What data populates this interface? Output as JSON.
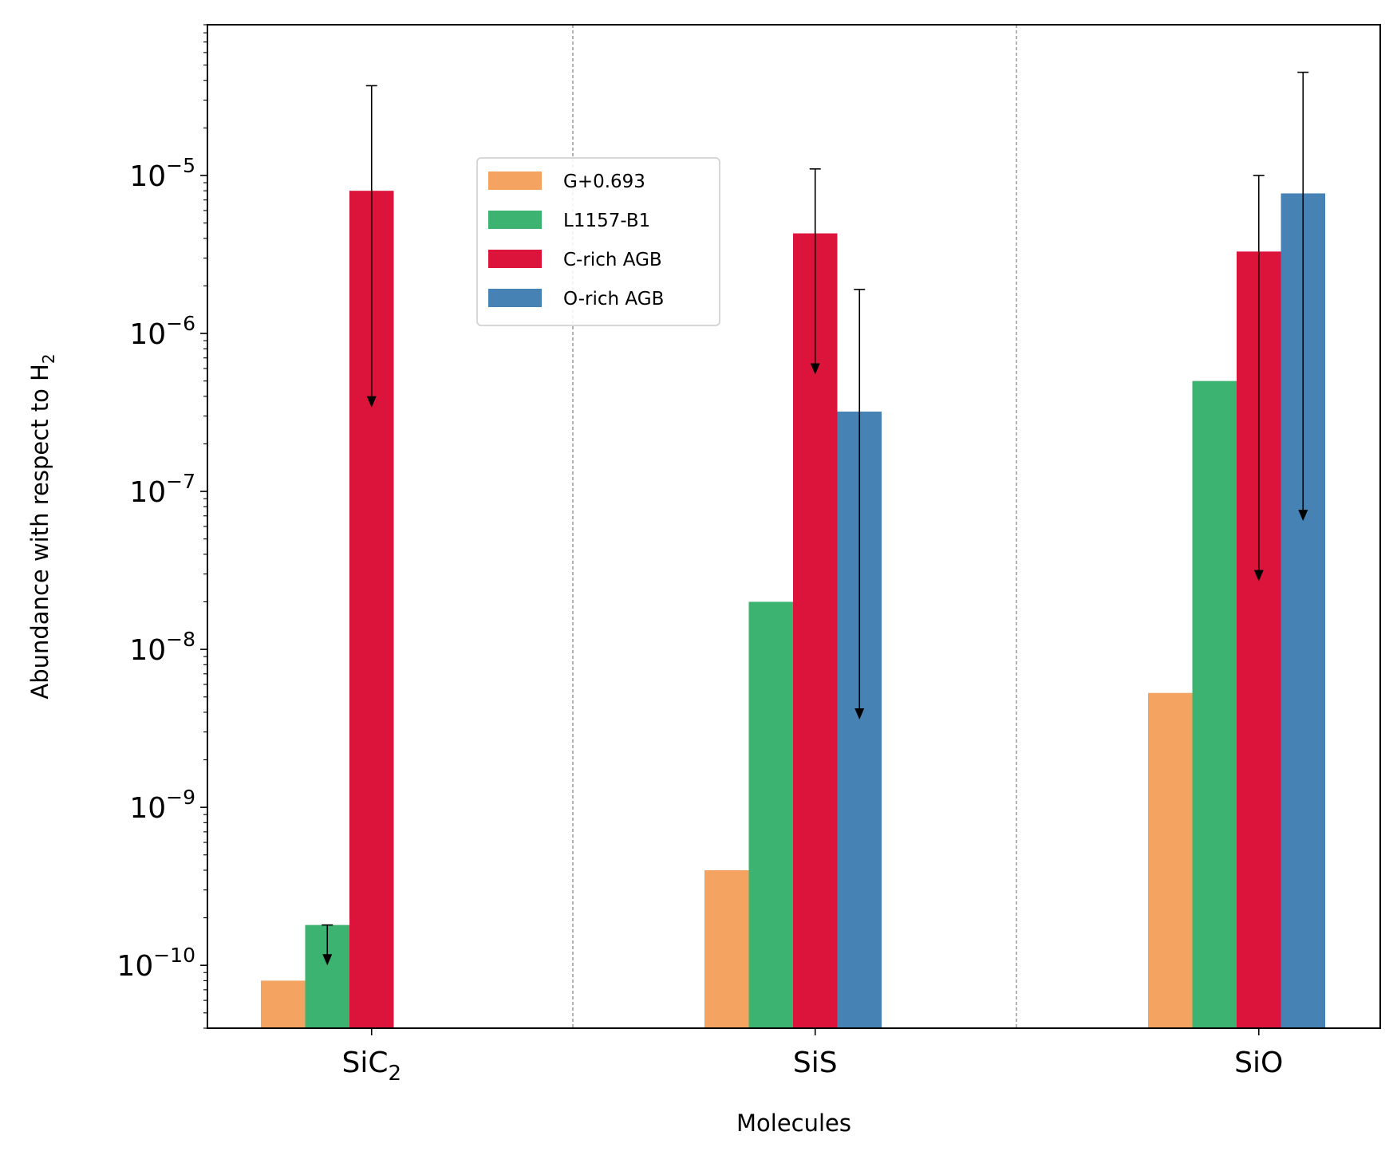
{
  "chart_data": {
    "type": "bar",
    "xlabel": "Molecules",
    "ylabel": "Abundance with respect to H",
    "ylabel_subscript": "2",
    "categories": [
      {
        "base": "SiC",
        "sub": "2"
      },
      {
        "base": "SiS",
        "sub": ""
      },
      {
        "base": "SiO",
        "sub": ""
      }
    ],
    "y_scale": "log",
    "ylim": [
      4e-11,
      9e-05
    ],
    "y_ticks": [
      {
        "base": "10",
        "exp": "−10",
        "value": 1e-10
      },
      {
        "base": "10",
        "exp": "−9",
        "value": 1e-09
      },
      {
        "base": "10",
        "exp": "−8",
        "value": 1e-08
      },
      {
        "base": "10",
        "exp": "−7",
        "value": 1e-07
      },
      {
        "base": "10",
        "exp": "−6",
        "value": 1e-06
      },
      {
        "base": "10",
        "exp": "−5",
        "value": 1e-05
      }
    ],
    "grid": "dashed vertical separators between molecule groups",
    "legend_position": "upper center-left",
    "series": [
      {
        "name": "G+0.693",
        "color": "#f4a460",
        "values": [
          8e-11,
          4e-10,
          5.3e-09
        ]
      },
      {
        "name": "L1157-B1",
        "color": "#3cb371",
        "values": [
          1.8e-10,
          2e-08,
          5e-07
        ]
      },
      {
        "name": "C-rich AGB",
        "color": "#dc143c",
        "values": [
          8e-06,
          4.3e-06,
          3.3e-06
        ]
      },
      {
        "name": "O-rich AGB",
        "color": "#4682b4",
        "values": [
          null,
          3.2e-07,
          7.7e-06
        ]
      }
    ],
    "ranges": [
      {
        "series_index": 1,
        "category_index": 0,
        "high": 1.8e-10,
        "low": 1e-10
      },
      {
        "series_index": 2,
        "category_index": 0,
        "high": 3.7e-05,
        "low": 3.4e-07
      },
      {
        "series_index": 2,
        "category_index": 1,
        "high": 1.1e-05,
        "low": 5.5e-07
      },
      {
        "series_index": 3,
        "category_index": 1,
        "high": 1.9e-06,
        "low": 3.6e-09
      },
      {
        "series_index": 2,
        "category_index": 2,
        "high": 1e-05,
        "low": 2.7e-08
      },
      {
        "series_index": 3,
        "category_index": 2,
        "high": 4.5e-05,
        "low": 6.5e-08
      }
    ]
  }
}
